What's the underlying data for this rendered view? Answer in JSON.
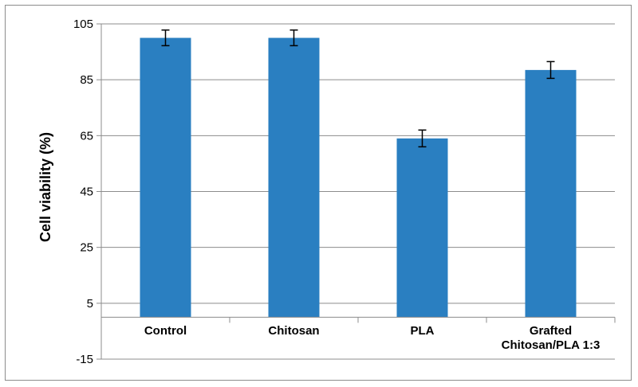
{
  "chart_data": {
    "type": "bar",
    "title": "",
    "xlabel": "",
    "ylabel": "Cell viability (%)",
    "categories": [
      "Control",
      "Chitosan",
      "PLA",
      "Grafted Chitosan/PLA 1:3"
    ],
    "category_lines": [
      [
        "Control"
      ],
      [
        "Chitosan"
      ],
      [
        "PLA"
      ],
      [
        "Grafted",
        "Chitosan/PLA 1:3"
      ]
    ],
    "values": [
      100,
      100,
      64,
      88.5
    ],
    "errors": [
      2.8,
      2.8,
      3.0,
      3.0
    ],
    "ylim": [
      -15,
      105
    ],
    "yticks": [
      -15,
      5,
      25,
      45,
      65,
      85,
      105
    ],
    "ytick_labels": [
      "-15",
      "5",
      "25",
      "45",
      "65",
      "85",
      "105"
    ],
    "grid": true,
    "bar_color": "#2a7fc1",
    "legend": "none"
  }
}
